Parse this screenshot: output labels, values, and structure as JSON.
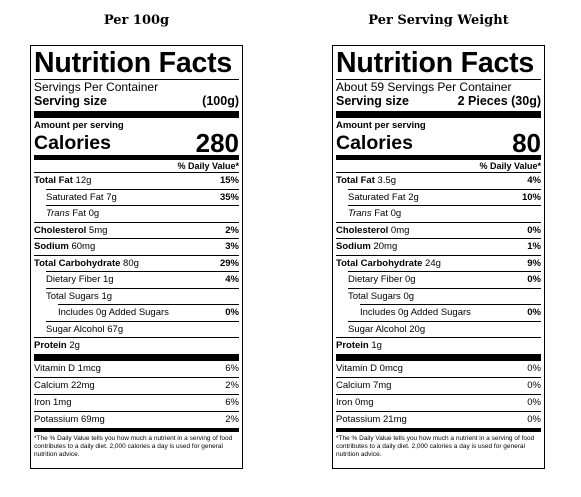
{
  "panels": [
    {
      "heading": "Per 100g",
      "title": "Nutrition Facts",
      "servings_per_container": "Servings Per Container",
      "serving_size_label": "Serving size",
      "serving_size_value": "(100g)",
      "amount_per_serving": "Amount per serving",
      "calories_label": "Calories",
      "calories_value": "280",
      "dv_header": "% Daily Value*",
      "total_fat": {
        "label": "Total Fat",
        "amount": "12g",
        "dv": "15%"
      },
      "saturated_fat": {
        "label": "Saturated Fat",
        "amount": "7g",
        "dv": "35%"
      },
      "trans_fat": {
        "label": "Trans",
        "suffix": " Fat 0g"
      },
      "cholesterol": {
        "label": "Cholesterol",
        "amount": "5mg",
        "dv": "2%"
      },
      "sodium": {
        "label": "Sodium",
        "amount": "60mg",
        "dv": "3%"
      },
      "total_carb": {
        "label": "Total Carbohydrate",
        "amount": "80g",
        "dv": "29%"
      },
      "fiber": {
        "label": "Dietary Fiber",
        "amount": "1g",
        "dv": "4%"
      },
      "total_sugars": {
        "label": "Total Sugars",
        "amount": "1g"
      },
      "added_sugars": {
        "label": "Includes 0g Added Sugars",
        "dv": "0%"
      },
      "sugar_alcohol": {
        "label": "Sugar Alcohol",
        "amount": "67g"
      },
      "protein": {
        "label": "Protein",
        "amount": "2g"
      },
      "vitamin_d": {
        "label": "Vitamin D",
        "amount": "1mcg",
        "dv": "6%"
      },
      "calcium": {
        "label": "Calcium",
        "amount": "22mg",
        "dv": "2%"
      },
      "iron": {
        "label": "Iron",
        "amount": "1mg",
        "dv": "6%"
      },
      "potassium": {
        "label": "Potassium",
        "amount": "69mg",
        "dv": "2%"
      },
      "footnote": "*The % Daily Value tells you how much a nutrient in a serving of food contributes to a daily diet. 2,000 calories a day is used for general nutrition advice."
    },
    {
      "heading": "Per Serving Weight",
      "title": "Nutrition Facts",
      "servings_per_container": "About 59 Servings Per Container",
      "serving_size_label": "Serving size",
      "serving_size_value": "2 Pieces (30g)",
      "amount_per_serving": "Amount per serving",
      "calories_label": "Calories",
      "calories_value": "80",
      "dv_header": "% Daily Value*",
      "total_fat": {
        "label": "Total Fat",
        "amount": "3.5g",
        "dv": "4%"
      },
      "saturated_fat": {
        "label": "Saturated Fat",
        "amount": "2g",
        "dv": "10%"
      },
      "trans_fat": {
        "label": "Trans",
        "suffix": " Fat 0g"
      },
      "cholesterol": {
        "label": "Cholesterol",
        "amount": "0mg",
        "dv": "0%"
      },
      "sodium": {
        "label": "Sodium",
        "amount": "20mg",
        "dv": "1%"
      },
      "total_carb": {
        "label": "Total Carbohydrate",
        "amount": "24g",
        "dv": "9%"
      },
      "fiber": {
        "label": "Dietary Fiber",
        "amount": "0g",
        "dv": "0%"
      },
      "total_sugars": {
        "label": "Total Sugars",
        "amount": "0g"
      },
      "added_sugars": {
        "label": "Includes 0g Added Sugars",
        "dv": "0%"
      },
      "sugar_alcohol": {
        "label": "Sugar Alcohol",
        "amount": "20g"
      },
      "protein": {
        "label": "Protein",
        "amount": "1g"
      },
      "vitamin_d": {
        "label": "Vitamin D",
        "amount": "0mcg",
        "dv": "0%"
      },
      "calcium": {
        "label": "Calcium",
        "amount": "7mg",
        "dv": "0%"
      },
      "iron": {
        "label": "Iron",
        "amount": "0mg",
        "dv": "0%"
      },
      "potassium": {
        "label": "Potassium",
        "amount": "21mg",
        "dv": "0%"
      },
      "footnote": "*The % Daily Value tells you how much a nutrient in a serving of food contributes to a daily diet. 2,000 calories a day is used for general nutrition advice."
    }
  ]
}
